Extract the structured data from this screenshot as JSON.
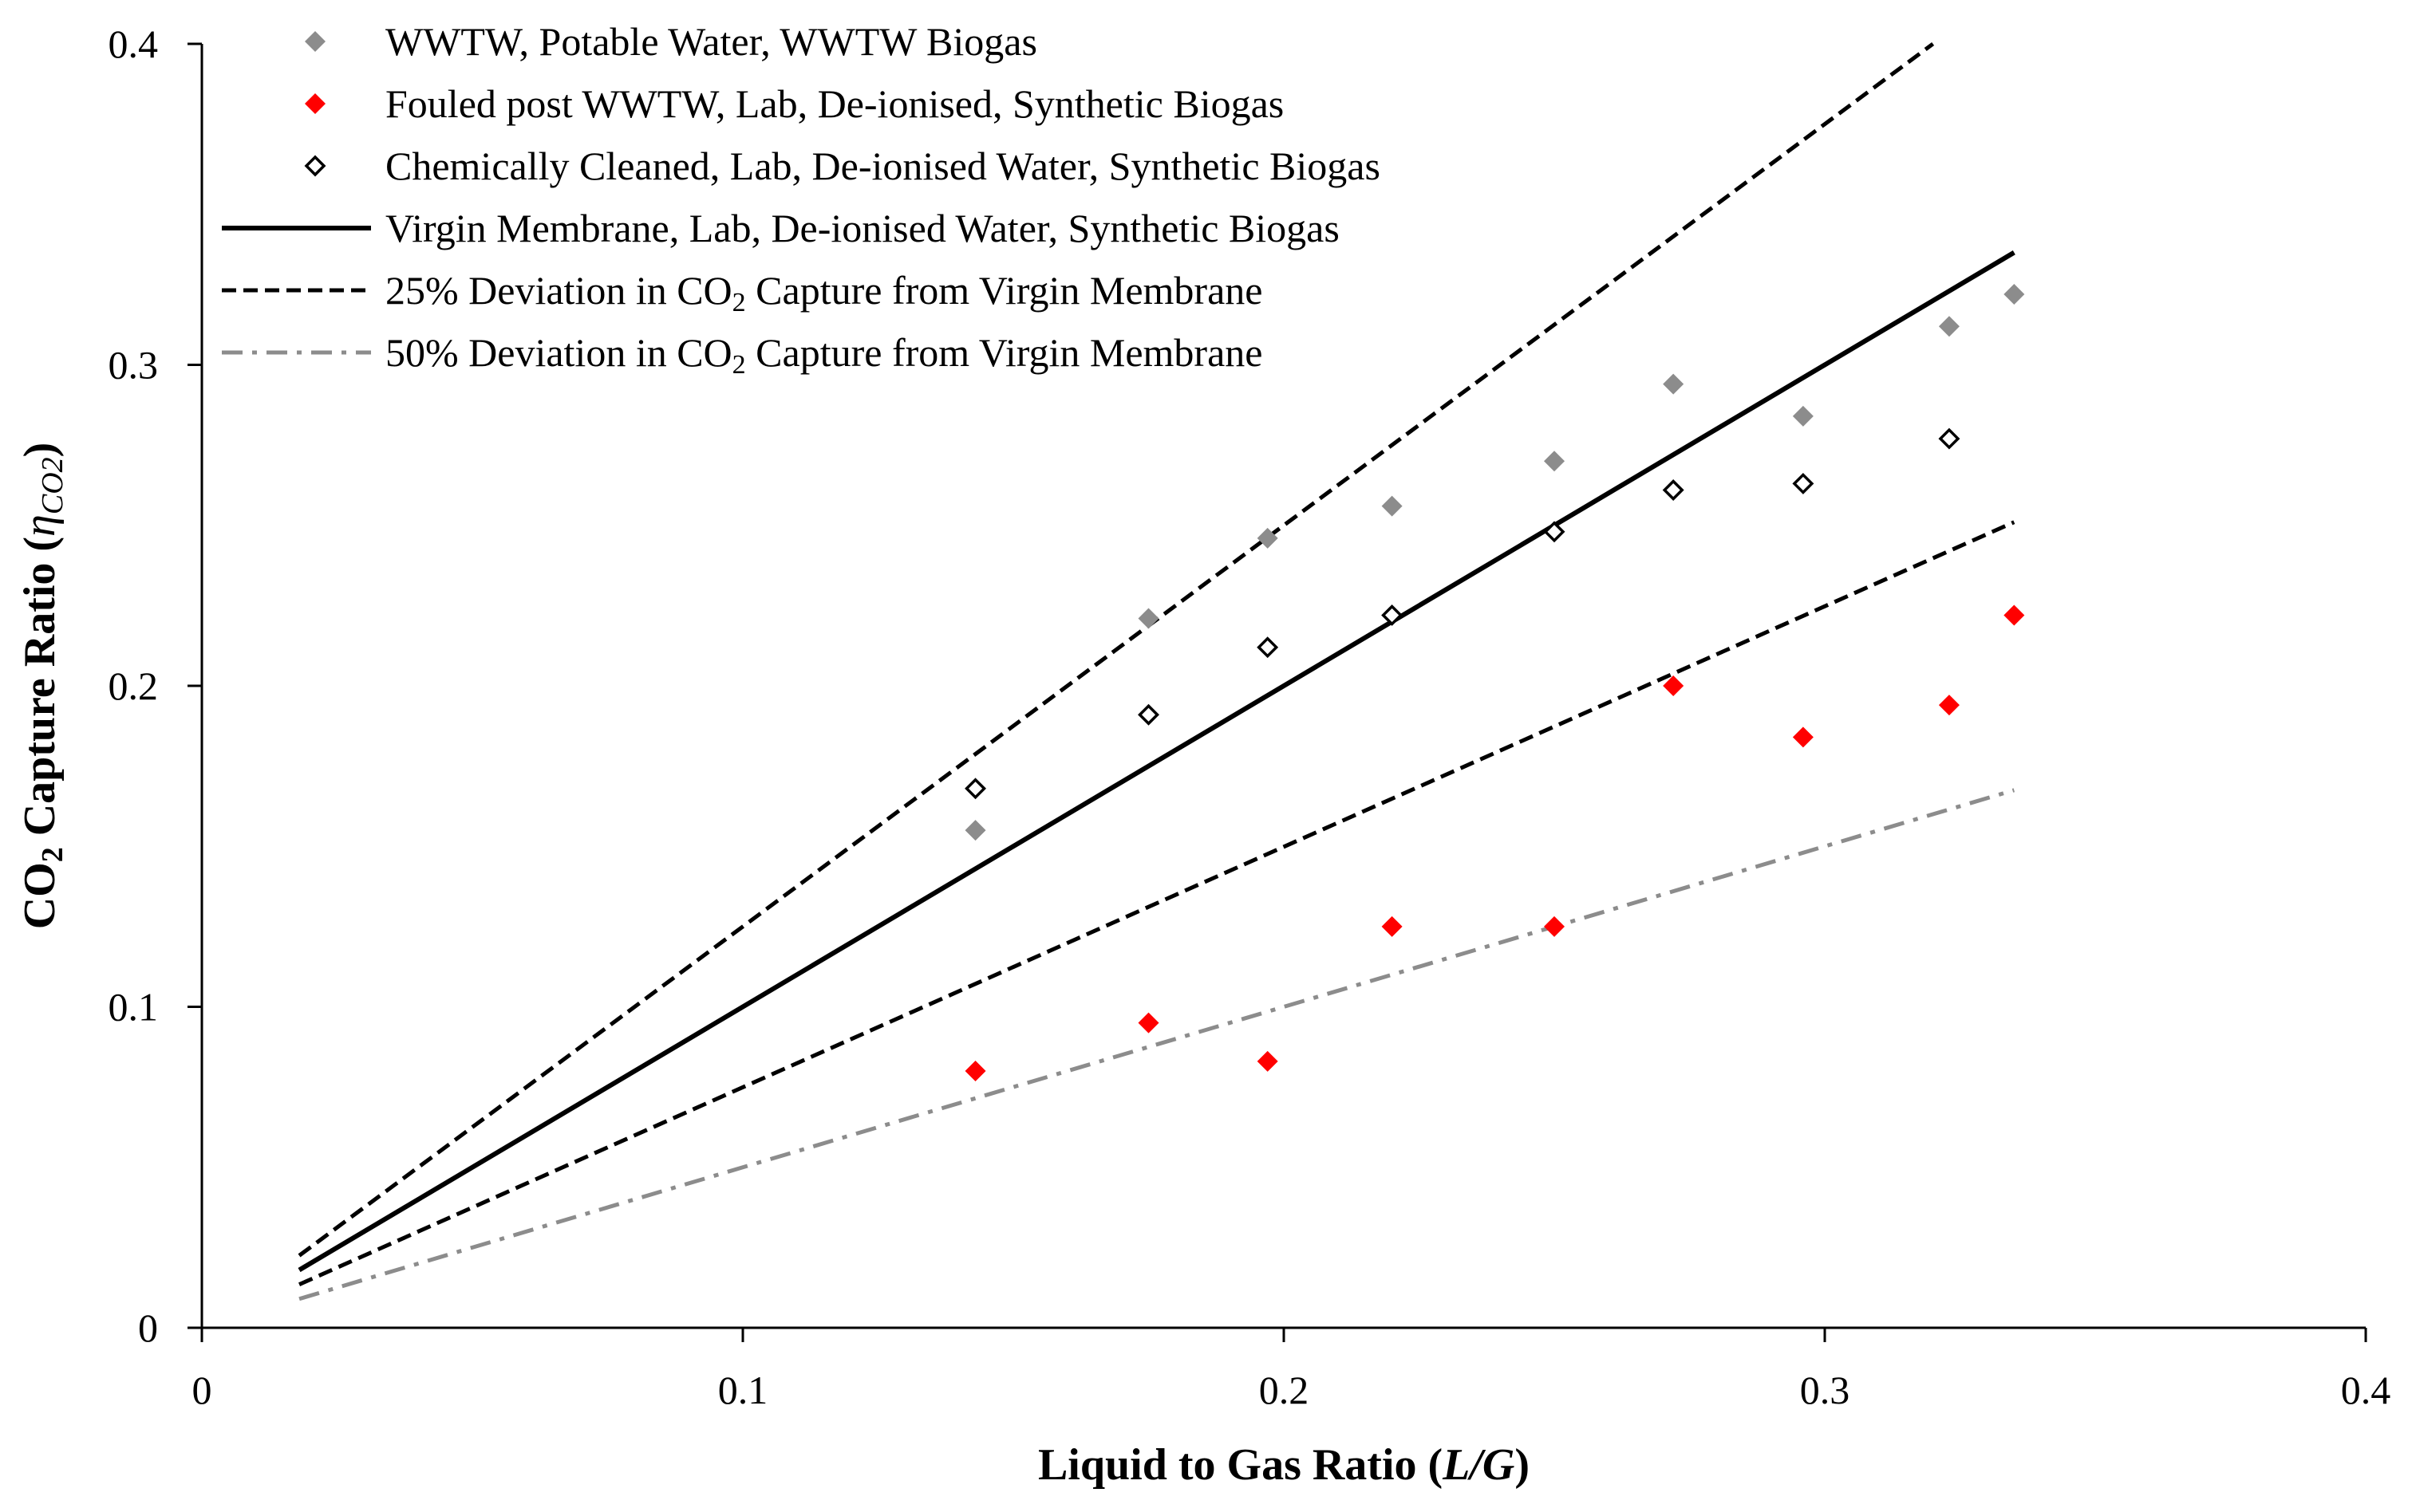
{
  "chart_data": {
    "type": "scatter",
    "title": "",
    "xlabel": {
      "prefix": "Liquid to Gas Ratio (",
      "italic": "L/G",
      "suffix": ")"
    },
    "ylabel": {
      "main": "CO",
      "sub": "2",
      "rest": " Capture Ratio (",
      "italic": "η",
      "italic_sub": "CO2",
      "suffix": ")"
    },
    "xlim": [
      0,
      0.4
    ],
    "ylim": [
      0,
      0.4
    ],
    "xticks": [
      {
        "value": 0,
        "label": "0"
      },
      {
        "value": 0.1,
        "label": "0.1"
      },
      {
        "value": 0.2,
        "label": "0.2"
      },
      {
        "value": 0.3,
        "label": "0.3"
      },
      {
        "value": 0.4,
        "label": "0.4"
      }
    ],
    "yticks": [
      {
        "value": 0,
        "label": "0"
      },
      {
        "value": 0.1,
        "label": "0.1"
      },
      {
        "value": 0.2,
        "label": "0.2"
      },
      {
        "value": 0.3,
        "label": "0.3"
      },
      {
        "value": 0.4,
        "label": "0.4"
      }
    ],
    "grid": false,
    "legend_position": "top-left",
    "series": [
      {
        "name": "WWTW, Potable Water, WWTW Biogas",
        "kind": "marker",
        "marker": "diamond-filled",
        "color": "#8c8c8c",
        "x": [
          0.143,
          0.175,
          0.197,
          0.22,
          0.25,
          0.272,
          0.296,
          0.323,
          0.335
        ],
        "y": [
          0.155,
          0.221,
          0.246,
          0.256,
          0.27,
          0.294,
          0.284,
          0.312,
          0.322
        ]
      },
      {
        "name": "Fouled post WWTW, Lab, De-ionised, Synthetic Biogas",
        "kind": "marker",
        "marker": "diamond-filled",
        "color": "#ff0000",
        "x": [
          0.143,
          0.175,
          0.197,
          0.22,
          0.25,
          0.272,
          0.296,
          0.323,
          0.335
        ],
        "y": [
          0.08,
          0.095,
          0.083,
          0.125,
          0.125,
          0.2,
          0.184,
          0.194,
          0.222
        ]
      },
      {
        "name": "Chemically Cleaned, Lab, De-ionised Water, Synthetic Biogas",
        "kind": "marker",
        "marker": "diamond-open",
        "color": "#000000",
        "x": [
          0.143,
          0.175,
          0.197,
          0.22,
          0.25,
          0.272,
          0.296,
          0.323
        ],
        "y": [
          0.168,
          0.191,
          0.212,
          0.222,
          0.248,
          0.261,
          0.263,
          0.277
        ]
      },
      {
        "name": "Virgin Membrane, Lab, De-ionised Water, Synthetic Biogas",
        "kind": "line",
        "style": "solid",
        "color": "#000000",
        "x": [
          0.018,
          0.335
        ],
        "y": [
          0.018,
          0.335
        ]
      },
      {
        "name": "25% Deviation in CO2 Capture from Virgin Membrane",
        "legend_label": {
          "pre": "25% Deviation in CO",
          "sub": "2",
          "post": " Capture from Virgin Membrane"
        },
        "kind": "line",
        "style": "dashed",
        "color": "#000000",
        "segments": [
          {
            "x": [
              0.018,
              0.32
            ],
            "y": [
              0.0225,
              0.4
            ]
          },
          {
            "x": [
              0.018,
              0.335
            ],
            "y": [
              0.0135,
              0.251
            ]
          }
        ]
      },
      {
        "name": "50% Deviation in CO2 Capture from Virgin Membrane",
        "legend_label": {
          "pre": "50% Deviation in CO",
          "sub": "2",
          "post": " Capture from Virgin Membrane"
        },
        "kind": "line",
        "style": "dashdot",
        "color": "#8c8c8c",
        "x": [
          0.018,
          0.335
        ],
        "y": [
          0.009,
          0.1675
        ]
      }
    ]
  }
}
